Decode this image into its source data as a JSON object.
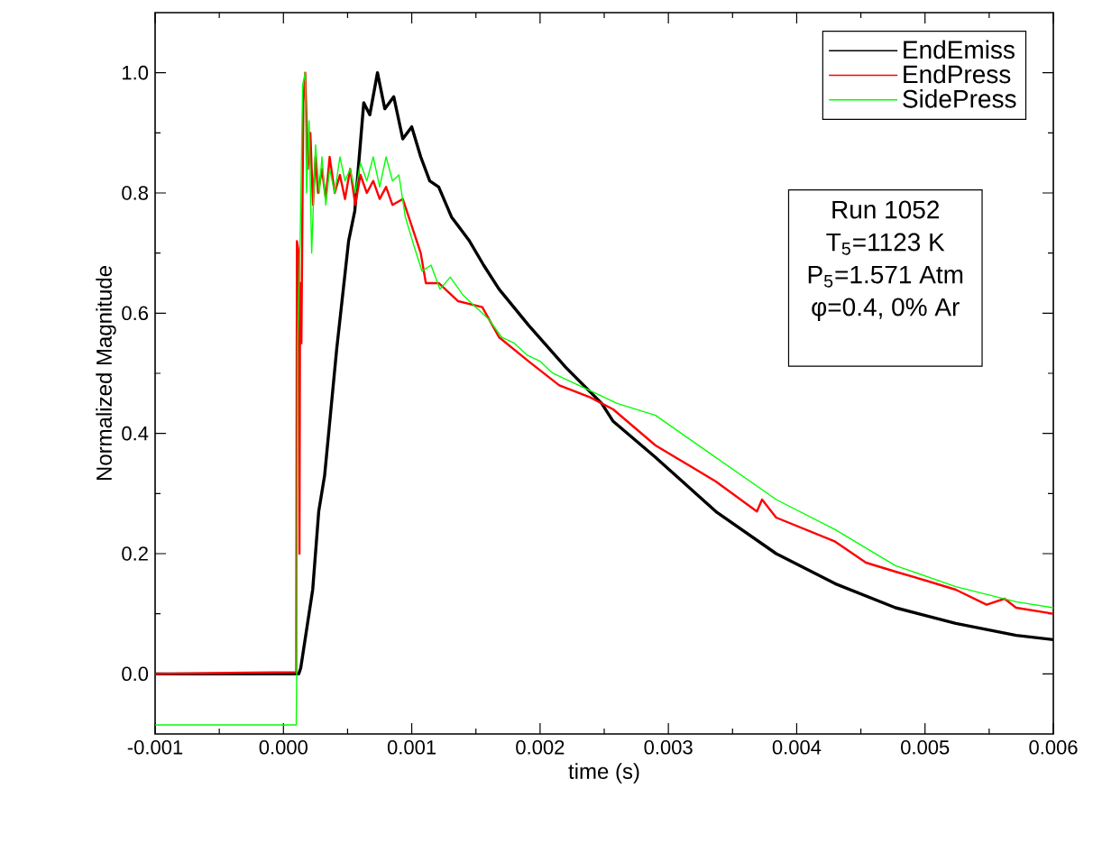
{
  "chart_data": {
    "type": "line",
    "xlabel": "time (s)",
    "ylabel": "Normalized Magnitude",
    "xlim": [
      -0.001,
      0.006
    ],
    "ylim": [
      -0.1,
      1.1
    ],
    "xticks": [
      -0.001,
      {
        "value": 0,
        "label": "0.000"
      },
      0.001,
      0.002,
      0.003,
      0.004,
      0.005,
      0.006
    ],
    "yticks": [
      {
        "value": 0,
        "label": "0.0"
      },
      0.2,
      0.4,
      0.6,
      0.8,
      {
        "value": 1,
        "label": "1.0"
      }
    ],
    "legend": "top right",
    "annotations": [
      "Run 1052",
      "T$_{5}$=1123 K",
      "P$_{5}$=1.571 Atm",
      "φ=0.4, 0% Ar"
    ],
    "series": [
      {
        "name": "EndEmiss",
        "color": "#000000",
        "x": [
          -0.001,
          0.00012,
          0.000135,
          0.000228,
          0.000275,
          0.000321,
          0.000415,
          0.000508,
          0.000556,
          0.000626,
          0.000673,
          0.000733,
          0.00079,
          0.00086,
          0.00093,
          0.001,
          0.00107,
          0.00114,
          0.00121,
          0.00131,
          0.00145,
          0.00156,
          0.00168,
          0.00191,
          0.0022,
          0.00248,
          0.00257,
          0.0029,
          0.00337,
          0.00384,
          0.0043,
          0.00477,
          0.00524,
          0.00571,
          0.006
        ],
        "values": [
          0.0,
          0.0,
          0.01,
          0.14,
          0.27,
          0.33,
          0.54,
          0.72,
          0.77,
          0.95,
          0.93,
          1.0,
          0.94,
          0.96,
          0.89,
          0.91,
          0.86,
          0.82,
          0.81,
          0.76,
          0.72,
          0.68,
          0.64,
          0.58,
          0.51,
          0.45,
          0.42,
          0.36,
          0.27,
          0.2,
          0.15,
          0.11,
          0.084,
          0.064,
          0.057
        ]
      },
      {
        "name": "EndPress",
        "color": "#ff0000",
        "x": [
          -0.001,
          0.0001,
          0.000105,
          0.00012,
          0.000125,
          0.00013,
          0.00014,
          0.000155,
          0.00017,
          0.00019,
          0.00021,
          0.00023,
          0.00025,
          0.00027,
          0.0003,
          0.00033,
          0.00036,
          0.0004,
          0.00044,
          0.00048,
          0.00052,
          0.00056,
          0.0006,
          0.00065,
          0.0007,
          0.00075,
          0.0008,
          0.00085,
          0.00093,
          0.00107,
          0.00111,
          0.00121,
          0.00136,
          0.00155,
          0.00168,
          0.00191,
          0.00215,
          0.00239,
          0.00257,
          0.0029,
          0.00337,
          0.00369,
          0.00373,
          0.00384,
          0.0043,
          0.00454,
          0.00477,
          0.00501,
          0.00524,
          0.00548,
          0.00562,
          0.00571,
          0.006
        ],
        "values": [
          0.0,
          0.003,
          0.72,
          0.7,
          0.2,
          0.65,
          0.55,
          0.95,
          1.0,
          0.84,
          0.9,
          0.78,
          0.86,
          0.8,
          0.84,
          0.79,
          0.86,
          0.8,
          0.83,
          0.79,
          0.84,
          0.78,
          0.83,
          0.8,
          0.82,
          0.79,
          0.81,
          0.78,
          0.79,
          0.7,
          0.65,
          0.65,
          0.62,
          0.61,
          0.56,
          0.52,
          0.48,
          0.46,
          0.44,
          0.38,
          0.32,
          0.27,
          0.29,
          0.26,
          0.22,
          0.185,
          0.17,
          0.155,
          0.14,
          0.115,
          0.125,
          0.11,
          0.1
        ]
      },
      {
        "name": "SidePress",
        "color": "#00ff00",
        "x": [
          -0.001,
          0.0001,
          0.000105,
          0.00011,
          0.00013,
          0.00015,
          0.00017,
          0.00018,
          0.0002,
          0.00022,
          0.00025,
          0.00028,
          0.0003,
          0.00033,
          0.00036,
          0.0004,
          0.00044,
          0.00048,
          0.00052,
          0.00056,
          0.0006,
          0.00065,
          0.0007,
          0.00075,
          0.0008,
          0.00085,
          0.0009,
          0.00095,
          0.00102,
          0.00108,
          0.00115,
          0.00122,
          0.0013,
          0.0014,
          0.0015,
          0.0016,
          0.0017,
          0.0018,
          0.0019,
          0.002,
          0.0021,
          0.0022,
          0.0024,
          0.0026,
          0.0029,
          0.00337,
          0.00384,
          0.0043,
          0.00477,
          0.00524,
          0.00571,
          0.006
        ],
        "values": [
          -0.085,
          -0.085,
          0.05,
          0.55,
          0.72,
          0.98,
          1.0,
          0.8,
          0.92,
          0.7,
          0.88,
          0.8,
          0.86,
          0.78,
          0.84,
          0.8,
          0.86,
          0.82,
          0.84,
          0.8,
          0.85,
          0.82,
          0.86,
          0.81,
          0.86,
          0.82,
          0.83,
          0.76,
          0.71,
          0.67,
          0.68,
          0.64,
          0.66,
          0.63,
          0.61,
          0.59,
          0.56,
          0.55,
          0.53,
          0.52,
          0.5,
          0.49,
          0.47,
          0.45,
          0.43,
          0.36,
          0.29,
          0.24,
          0.18,
          0.145,
          0.12,
          0.11
        ]
      }
    ]
  }
}
